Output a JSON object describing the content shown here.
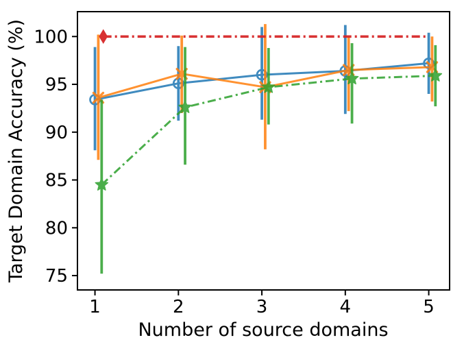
{
  "figure": {
    "background": "#ffffff"
  },
  "chart_data": {
    "type": "line",
    "title": "",
    "xlabel": "Number of source domains",
    "ylabel": "Target Domain Accuracy (%)",
    "x_ticks": [
      "1",
      "2",
      "3",
      "4",
      "5"
    ],
    "y_ticks": [
      "75",
      "80",
      "85",
      "90",
      "95",
      "100"
    ],
    "x_tick_values": [
      1,
      2,
      3,
      4,
      5
    ],
    "y_tick_values": [
      75,
      80,
      85,
      90,
      95,
      100
    ],
    "xlim": [
      0.79,
      5.25
    ],
    "ylim": [
      73.5,
      102.6
    ],
    "grid": false,
    "legend_position": "none",
    "axis_color": "#000000",
    "series": [
      {
        "name": "blue-circle-solid",
        "color": "#1f77b4",
        "linestyle": "solid",
        "marker": "open-circle",
        "x_offset": 0.0,
        "x": [
          1,
          2,
          3,
          4,
          5
        ],
        "y": [
          93.4,
          95.1,
          96.0,
          96.4,
          97.2
        ],
        "err_upper": [
          98.9,
          99.0,
          101.0,
          101.2,
          100.4
        ],
        "err_lower": [
          88.1,
          91.2,
          91.3,
          91.9,
          94.0
        ]
      },
      {
        "name": "orange-x-solid",
        "color": "#ff7f0e",
        "linestyle": "solid",
        "marker": "x",
        "x_offset": 0.04,
        "x": [
          1,
          2,
          3,
          4,
          5
        ],
        "y": [
          93.6,
          96.1,
          94.7,
          96.5,
          96.8
        ],
        "err_upper": [
          100.2,
          100.1,
          101.3,
          99.9,
          100.0
        ],
        "err_lower": [
          87.1,
          92.0,
          88.2,
          92.2,
          93.2
        ]
      },
      {
        "name": "green-star-dashdot",
        "color": "#2ca02c",
        "linestyle": "dashdot",
        "marker": "star",
        "x_offset": 0.08,
        "x": [
          1,
          2,
          3,
          4,
          5
        ],
        "y": [
          84.5,
          92.6,
          94.7,
          95.6,
          95.9
        ],
        "err_upper": [
          93.4,
          98.9,
          98.8,
          99.3,
          99.1
        ],
        "err_lower": [
          75.2,
          86.6,
          90.8,
          90.9,
          92.7
        ]
      },
      {
        "name": "red-reference-dashdot",
        "color": "#d62728",
        "linestyle": "dashdot",
        "marker": "thin-diamond",
        "x_offset": 0.0,
        "x": [
          1.1,
          5.0
        ],
        "y": [
          100,
          100
        ],
        "marker_x": [
          1.1
        ],
        "err_upper": null,
        "err_lower": null
      }
    ]
  }
}
